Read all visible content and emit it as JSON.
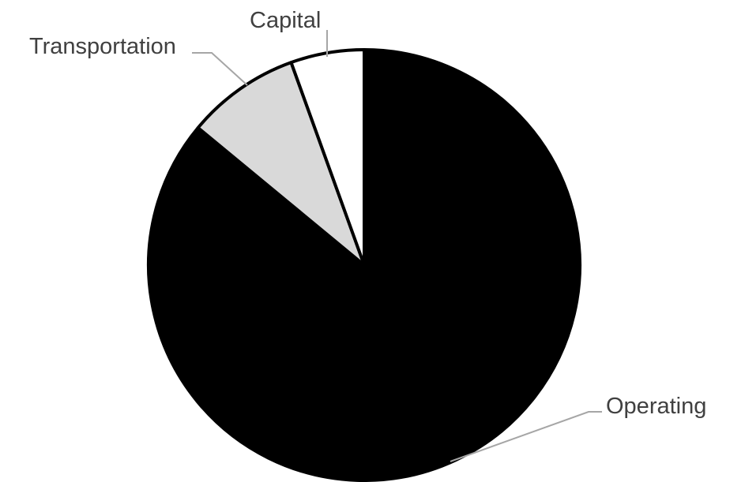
{
  "chart_data": {
    "type": "pie",
    "title": "",
    "start": "top",
    "direction": "clockwise",
    "legend": "none",
    "slices": [
      {
        "label": "Operating",
        "value": 86,
        "color": "#000000"
      },
      {
        "label": "Transportation",
        "value": 8.5,
        "color": "#d9d9d9"
      },
      {
        "label": "Capital",
        "value": 5.5,
        "color": "#ffffff"
      }
    ]
  }
}
